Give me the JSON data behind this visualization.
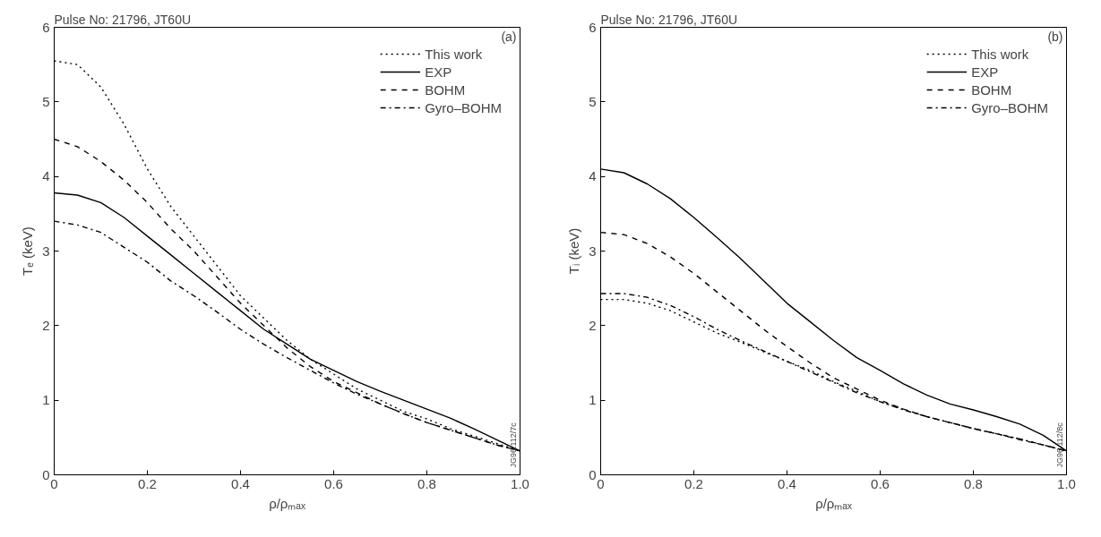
{
  "chart_data": [
    {
      "type": "line",
      "title": "Pulse No: 21796, JT60U",
      "xlabel": "ρ/ρₘₐₓ",
      "ylabel": "Tₑ (keV)",
      "annotations": [
        "(a)",
        "JG96.112/7c"
      ],
      "x": [
        0,
        0.05,
        0.1,
        0.15,
        0.2,
        0.25,
        0.3,
        0.35,
        0.4,
        0.45,
        0.5,
        0.55,
        0.6,
        0.65,
        0.7,
        0.75,
        0.8,
        0.85,
        0.9,
        0.95,
        1.0
      ],
      "series": [
        {
          "name": "This work",
          "color": "#000000",
          "line_style": "dotted",
          "values": [
            5.55,
            5.5,
            5.2,
            4.7,
            4.1,
            3.6,
            3.2,
            2.8,
            2.4,
            2.1,
            1.8,
            1.55,
            1.35,
            1.15,
            1.0,
            0.85,
            0.75,
            0.62,
            0.52,
            0.42,
            0.32
          ]
        },
        {
          "name": "EXP",
          "color": "#000000",
          "line_style": "solid",
          "values": [
            3.78,
            3.75,
            3.65,
            3.45,
            3.2,
            2.95,
            2.7,
            2.45,
            2.2,
            1.95,
            1.75,
            1.55,
            1.4,
            1.25,
            1.12,
            1.0,
            0.88,
            0.76,
            0.62,
            0.47,
            0.32
          ]
        },
        {
          "name": "BOHM",
          "color": "#000000",
          "line_style": "dashed",
          "values": [
            4.5,
            4.4,
            4.2,
            3.95,
            3.65,
            3.3,
            3.0,
            2.65,
            2.3,
            2.0,
            1.7,
            1.45,
            1.25,
            1.1,
            0.95,
            0.82,
            0.7,
            0.6,
            0.5,
            0.4,
            0.32
          ]
        },
        {
          "name": "Gyro–BOHM",
          "color": "#000000",
          "line_style": "dashdot",
          "values": [
            3.4,
            3.35,
            3.25,
            3.05,
            2.85,
            2.6,
            2.4,
            2.18,
            1.95,
            1.75,
            1.57,
            1.4,
            1.23,
            1.08,
            0.95,
            0.82,
            0.7,
            0.6,
            0.5,
            0.4,
            0.32
          ]
        }
      ],
      "xlim": [
        0,
        1
      ],
      "ylim": [
        0,
        6
      ],
      "xticks": [
        0,
        0.2,
        0.4,
        0.6,
        0.8,
        {
          "value": 1,
          "label": "1.0"
        }
      ],
      "yticks": [
        0,
        1,
        2,
        3,
        4,
        5,
        6
      ],
      "grid": false,
      "legend": "top right"
    },
    {
      "type": "line",
      "title": "Pulse No: 21796, JT60U",
      "xlabel": "ρ/ρₘₐₓ",
      "ylabel": "Tᵢ (keV)",
      "annotations": [
        "(b)",
        "JG96.112/8c"
      ],
      "x": [
        0,
        0.05,
        0.1,
        0.15,
        0.2,
        0.25,
        0.3,
        0.35,
        0.4,
        0.45,
        0.5,
        0.55,
        0.6,
        0.65,
        0.7,
        0.75,
        0.8,
        0.85,
        0.9,
        0.95,
        1.0
      ],
      "series": [
        {
          "name": "This work",
          "color": "#000000",
          "line_style": "dotted",
          "values": [
            2.35,
            2.35,
            2.3,
            2.2,
            2.05,
            1.9,
            1.78,
            1.65,
            1.52,
            1.4,
            1.25,
            1.12,
            0.98,
            0.88,
            0.78,
            0.7,
            0.62,
            0.55,
            0.48,
            0.4,
            0.32
          ]
        },
        {
          "name": "EXP",
          "color": "#000000",
          "line_style": "solid",
          "values": [
            4.1,
            4.05,
            3.9,
            3.7,
            3.45,
            3.18,
            2.9,
            2.6,
            2.3,
            2.05,
            1.8,
            1.57,
            1.4,
            1.22,
            1.07,
            0.95,
            0.87,
            0.78,
            0.68,
            0.53,
            0.32
          ]
        },
        {
          "name": "BOHM",
          "color": "#000000",
          "line_style": "dashed",
          "values": [
            3.25,
            3.22,
            3.1,
            2.92,
            2.7,
            2.45,
            2.2,
            1.95,
            1.72,
            1.5,
            1.3,
            1.15,
            1.0,
            0.88,
            0.78,
            0.7,
            0.62,
            0.55,
            0.47,
            0.4,
            0.32
          ]
        },
        {
          "name": "Gyro–BOHM",
          "color": "#000000",
          "line_style": "dashdot",
          "values": [
            2.43,
            2.43,
            2.38,
            2.27,
            2.12,
            1.95,
            1.8,
            1.66,
            1.52,
            1.38,
            1.24,
            1.1,
            0.98,
            0.87,
            0.78,
            0.7,
            0.62,
            0.55,
            0.48,
            0.4,
            0.32
          ]
        }
      ],
      "xlim": [
        0,
        1
      ],
      "ylim": [
        0,
        6
      ],
      "xticks": [
        0,
        0.2,
        0.4,
        0.6,
        0.8,
        {
          "value": 1,
          "label": "1.0"
        }
      ],
      "yticks": [
        0,
        1,
        2,
        3,
        4,
        5,
        6
      ],
      "grid": false,
      "legend": "top right"
    }
  ]
}
